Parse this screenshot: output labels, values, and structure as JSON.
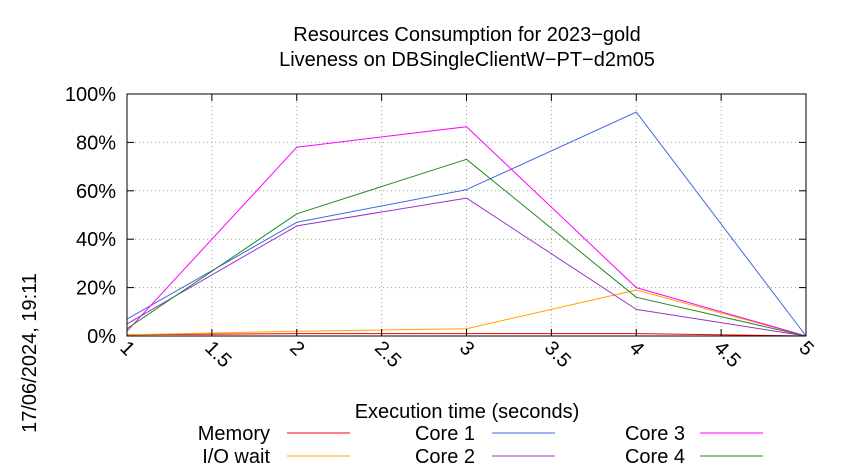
{
  "chart_data": {
    "type": "line",
    "title": [
      "Resources Consumption for 2023−gold",
      "Liveness on DBSingleClientW−PT−d2m05"
    ],
    "xlabel": "Execution time (seconds)",
    "ylabel": "",
    "xlim": [
      1,
      5
    ],
    "ylim": [
      0,
      100
    ],
    "xticks": [
      "1",
      "1.5",
      "2",
      "2.5",
      "3",
      "3.5",
      "4",
      "4.5",
      "5"
    ],
    "yticks": [
      "0%",
      "20%",
      "40%",
      "60%",
      "80%",
      "100%"
    ],
    "grid": true,
    "legend_position": "bottom",
    "series": [
      {
        "name": "Memory",
        "color": "#ff0000",
        "x": [
          1,
          2,
          3,
          4,
          5
        ],
        "y": [
          0.5,
          1,
          1,
          1,
          0
        ]
      },
      {
        "name": "I/O wait",
        "color": "#ffa500",
        "x": [
          1,
          2,
          3,
          4,
          5
        ],
        "y": [
          0.5,
          2,
          3,
          19,
          0
        ]
      },
      {
        "name": "Core 1",
        "color": "#4169e1",
        "x": [
          1,
          2,
          3,
          4,
          5
        ],
        "y": [
          7,
          47,
          60.5,
          92.5,
          0
        ]
      },
      {
        "name": "Core 2",
        "color": "#9932cc",
        "x": [
          1,
          2,
          3,
          4,
          5
        ],
        "y": [
          5,
          45.5,
          57,
          11,
          0
        ]
      },
      {
        "name": "Core 3",
        "color": "#ff00ff",
        "x": [
          1,
          2,
          3,
          4,
          5
        ],
        "y": [
          2,
          78,
          86.5,
          20,
          0
        ]
      },
      {
        "name": "Core 4",
        "color": "#228b22",
        "x": [
          1,
          2,
          3,
          4,
          5
        ],
        "y": [
          3,
          50.5,
          73,
          16,
          0
        ]
      }
    ]
  },
  "timestamp": "17/06/2024, 19:11"
}
